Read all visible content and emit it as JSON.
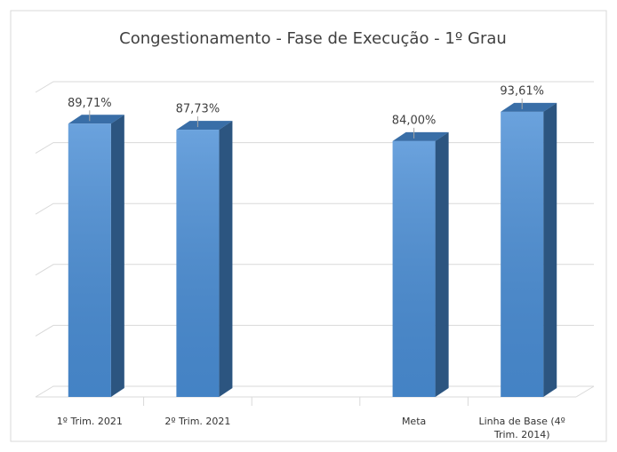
{
  "chart_data": {
    "type": "bar3d",
    "title": "Congestionamento - Fase de Execução - 1º Grau",
    "categories": [
      "1º Trim. 2021",
      "2º Trim. 2021",
      null,
      "Meta",
      "Linha de Base (4º Trim. 2014)"
    ],
    "values": [
      89.71,
      87.73,
      null,
      84.0,
      93.61
    ],
    "value_labels": [
      "89,71%",
      "87,73%",
      null,
      "84,00%",
      "93,61%"
    ],
    "color": "#4a8ed6",
    "ylim": [
      0,
      100
    ],
    "yticks": [
      0,
      20,
      40,
      60,
      80,
      100
    ],
    "grid": true
  }
}
